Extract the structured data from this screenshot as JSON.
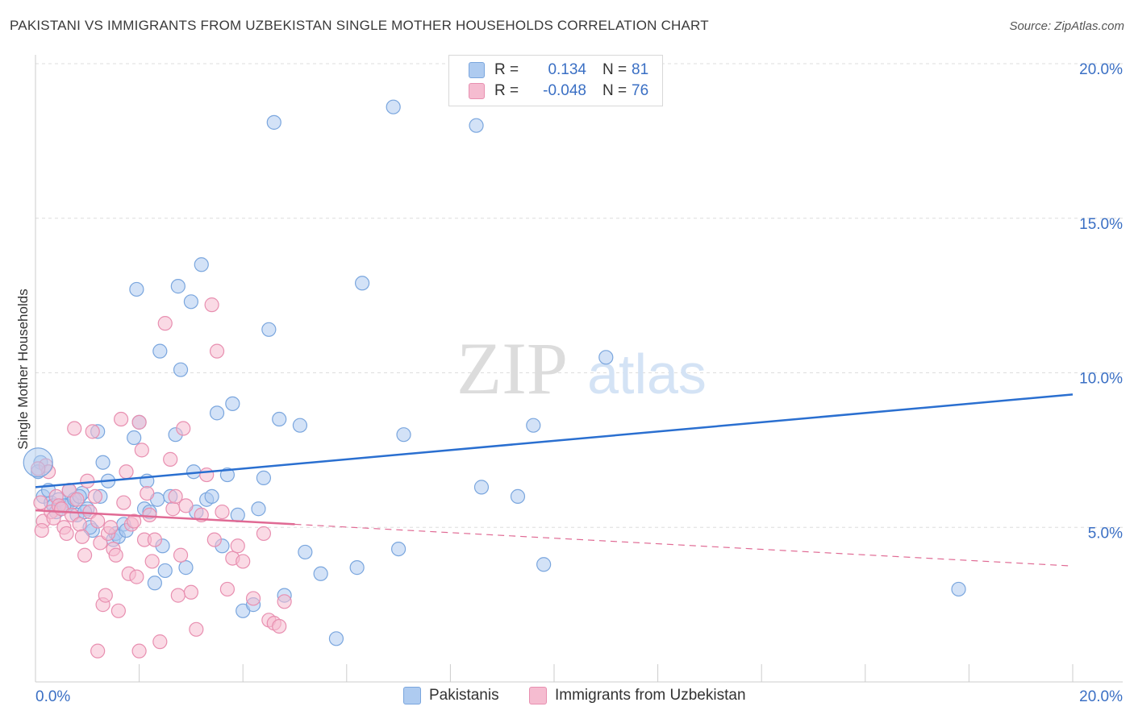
{
  "header": {
    "title": "PAKISTANI VS IMMIGRANTS FROM UZBEKISTAN SINGLE MOTHER HOUSEHOLDS CORRELATION CHART",
    "source": "Source: ZipAtlas.com"
  },
  "watermark": {
    "zip": "ZIP",
    "atlas": "atlas"
  },
  "legend": {
    "rows": [
      {
        "r_label": "R =",
        "r_value": "0.134",
        "n_label": "N =",
        "n_value": "81"
      },
      {
        "r_label": "R =",
        "r_value": "-0.048",
        "n_label": "N =",
        "n_value": "76"
      }
    ]
  },
  "bottom_legend": [
    "Pakistanis",
    "Immigrants from Uzbekistan"
  ],
  "colors": {
    "blue_fill": "#aecbf0",
    "blue_stroke": "#7aa6de",
    "blue_line": "#2a6fd0",
    "pink_fill": "#f5bcd0",
    "pink_stroke": "#e88fb0",
    "pink_line": "#e06a94",
    "axis_text": "#3a6fc4",
    "grid": "#dddddd"
  },
  "chart_data": {
    "type": "scatter",
    "title": "PAKISTANI VS IMMIGRANTS FROM UZBEKISTAN SINGLE MOTHER HOUSEHOLDS CORRELATION CHART",
    "ylabel": "Single Mother Households",
    "xlabel": "",
    "xlim": [
      0,
      20
    ],
    "ylim": [
      0,
      20
    ],
    "x_tick_labels": [
      "0.0%",
      "20.0%"
    ],
    "y_tick_labels": [
      "5.0%",
      "10.0%",
      "15.0%",
      "20.0%"
    ],
    "grid": true,
    "series": [
      {
        "name": "Pakistanis",
        "r": 0.134,
        "n": 81,
        "trend": {
          "x": [
            0,
            20
          ],
          "y": [
            6.3,
            9.3
          ]
        },
        "points": [
          [
            0.1,
            7.1
          ],
          [
            0.15,
            6.0
          ],
          [
            0.3,
            5.8
          ],
          [
            0.35,
            5.7
          ],
          [
            0.4,
            5.5
          ],
          [
            0.5,
            5.6
          ],
          [
            0.6,
            5.7
          ],
          [
            0.65,
            6.2
          ],
          [
            0.7,
            5.8
          ],
          [
            0.8,
            5.4
          ],
          [
            0.9,
            6.1
          ],
          [
            1.0,
            5.6
          ],
          [
            1.1,
            4.9
          ],
          [
            1.2,
            8.1
          ],
          [
            1.3,
            7.1
          ],
          [
            1.4,
            6.5
          ],
          [
            1.5,
            4.6
          ],
          [
            1.55,
            4.8
          ],
          [
            1.6,
            4.7
          ],
          [
            1.7,
            5.1
          ],
          [
            1.75,
            4.9
          ],
          [
            1.9,
            7.9
          ],
          [
            1.95,
            12.7
          ],
          [
            2.0,
            8.4
          ],
          [
            2.1,
            5.6
          ],
          [
            2.15,
            6.5
          ],
          [
            2.2,
            5.5
          ],
          [
            2.3,
            3.2
          ],
          [
            2.35,
            5.9
          ],
          [
            2.4,
            10.7
          ],
          [
            2.45,
            4.4
          ],
          [
            2.5,
            3.6
          ],
          [
            2.6,
            6.0
          ],
          [
            2.7,
            8.0
          ],
          [
            2.75,
            12.8
          ],
          [
            2.8,
            10.1
          ],
          [
            2.9,
            3.7
          ],
          [
            3.0,
            12.3
          ],
          [
            3.05,
            6.8
          ],
          [
            3.1,
            5.5
          ],
          [
            3.2,
            13.5
          ],
          [
            3.3,
            5.9
          ],
          [
            3.4,
            6.0
          ],
          [
            3.5,
            8.7
          ],
          [
            3.6,
            4.4
          ],
          [
            3.7,
            6.7
          ],
          [
            3.8,
            9.0
          ],
          [
            3.9,
            5.4
          ],
          [
            4.0,
            2.3
          ],
          [
            4.2,
            2.5
          ],
          [
            4.3,
            5.6
          ],
          [
            4.4,
            6.6
          ],
          [
            4.5,
            11.4
          ],
          [
            4.6,
            18.1
          ],
          [
            4.7,
            8.5
          ],
          [
            4.8,
            2.8
          ],
          [
            5.1,
            8.3
          ],
          [
            5.2,
            4.2
          ],
          [
            5.5,
            3.5
          ],
          [
            5.8,
            1.4
          ],
          [
            6.2,
            3.7
          ],
          [
            6.3,
            12.9
          ],
          [
            6.9,
            18.6
          ],
          [
            7.0,
            4.3
          ],
          [
            7.1,
            8.0
          ],
          [
            8.5,
            18.0
          ],
          [
            8.6,
            6.3
          ],
          [
            9.3,
            6.0
          ],
          [
            9.6,
            8.3
          ],
          [
            9.8,
            3.8
          ],
          [
            11.0,
            10.5
          ],
          [
            17.8,
            3.0
          ],
          [
            0.05,
            6.8
          ],
          [
            0.25,
            6.2
          ],
          [
            0.45,
            5.9
          ],
          [
            0.55,
            5.7
          ],
          [
            0.75,
            5.9
          ],
          [
            0.85,
            6.0
          ],
          [
            0.95,
            5.5
          ],
          [
            1.05,
            5.0
          ],
          [
            1.25,
            6.0
          ]
        ]
      },
      {
        "name": "Immigrants from Uzbekistan",
        "r": -0.048,
        "n": 76,
        "trend": {
          "x": [
            0,
            5
          ],
          "y": [
            5.55,
            5.1
          ]
        },
        "trend_dashed": {
          "x": [
            5,
            20
          ],
          "y": [
            5.1,
            3.75
          ]
        },
        "points": [
          [
            0.1,
            5.8
          ],
          [
            0.15,
            5.2
          ],
          [
            0.2,
            7.0
          ],
          [
            0.25,
            6.8
          ],
          [
            0.3,
            5.5
          ],
          [
            0.35,
            5.3
          ],
          [
            0.4,
            6.0
          ],
          [
            0.45,
            5.7
          ],
          [
            0.5,
            5.6
          ],
          [
            0.55,
            5.0
          ],
          [
            0.6,
            4.8
          ],
          [
            0.65,
            6.2
          ],
          [
            0.7,
            5.4
          ],
          [
            0.75,
            8.2
          ],
          [
            0.8,
            5.9
          ],
          [
            0.85,
            5.1
          ],
          [
            0.9,
            4.7
          ],
          [
            0.95,
            4.1
          ],
          [
            1.0,
            6.5
          ],
          [
            1.05,
            5.5
          ],
          [
            1.1,
            8.1
          ],
          [
            1.15,
            6.0
          ],
          [
            1.2,
            5.2
          ],
          [
            1.25,
            4.5
          ],
          [
            1.3,
            2.5
          ],
          [
            1.35,
            2.8
          ],
          [
            1.4,
            4.8
          ],
          [
            1.45,
            5.0
          ],
          [
            1.5,
            4.3
          ],
          [
            1.55,
            4.1
          ],
          [
            1.6,
            2.3
          ],
          [
            1.65,
            8.5
          ],
          [
            1.7,
            5.8
          ],
          [
            1.75,
            6.8
          ],
          [
            1.8,
            3.5
          ],
          [
            1.85,
            5.1
          ],
          [
            1.9,
            5.2
          ],
          [
            1.95,
            3.4
          ],
          [
            2.0,
            8.4
          ],
          [
            2.05,
            7.5
          ],
          [
            2.1,
            4.6
          ],
          [
            2.15,
            6.1
          ],
          [
            2.2,
            5.4
          ],
          [
            2.25,
            3.9
          ],
          [
            2.3,
            4.6
          ],
          [
            2.4,
            1.3
          ],
          [
            2.5,
            11.6
          ],
          [
            2.6,
            7.2
          ],
          [
            2.65,
            5.6
          ],
          [
            2.7,
            6.0
          ],
          [
            2.75,
            2.8
          ],
          [
            2.8,
            4.1
          ],
          [
            2.85,
            8.2
          ],
          [
            2.9,
            5.7
          ],
          [
            3.0,
            2.9
          ],
          [
            3.1,
            1.7
          ],
          [
            3.2,
            5.4
          ],
          [
            3.3,
            6.7
          ],
          [
            3.4,
            12.2
          ],
          [
            3.45,
            4.6
          ],
          [
            3.5,
            10.7
          ],
          [
            3.6,
            5.5
          ],
          [
            3.7,
            3.0
          ],
          [
            3.8,
            4.0
          ],
          [
            3.9,
            4.4
          ],
          [
            4.0,
            3.9
          ],
          [
            4.2,
            2.7
          ],
          [
            4.4,
            4.8
          ],
          [
            4.5,
            2.0
          ],
          [
            4.6,
            1.9
          ],
          [
            4.7,
            1.8
          ],
          [
            4.8,
            2.6
          ],
          [
            1.2,
            1.0
          ],
          [
            2.0,
            1.0
          ],
          [
            0.05,
            6.9
          ],
          [
            0.12,
            4.9
          ]
        ]
      }
    ]
  }
}
